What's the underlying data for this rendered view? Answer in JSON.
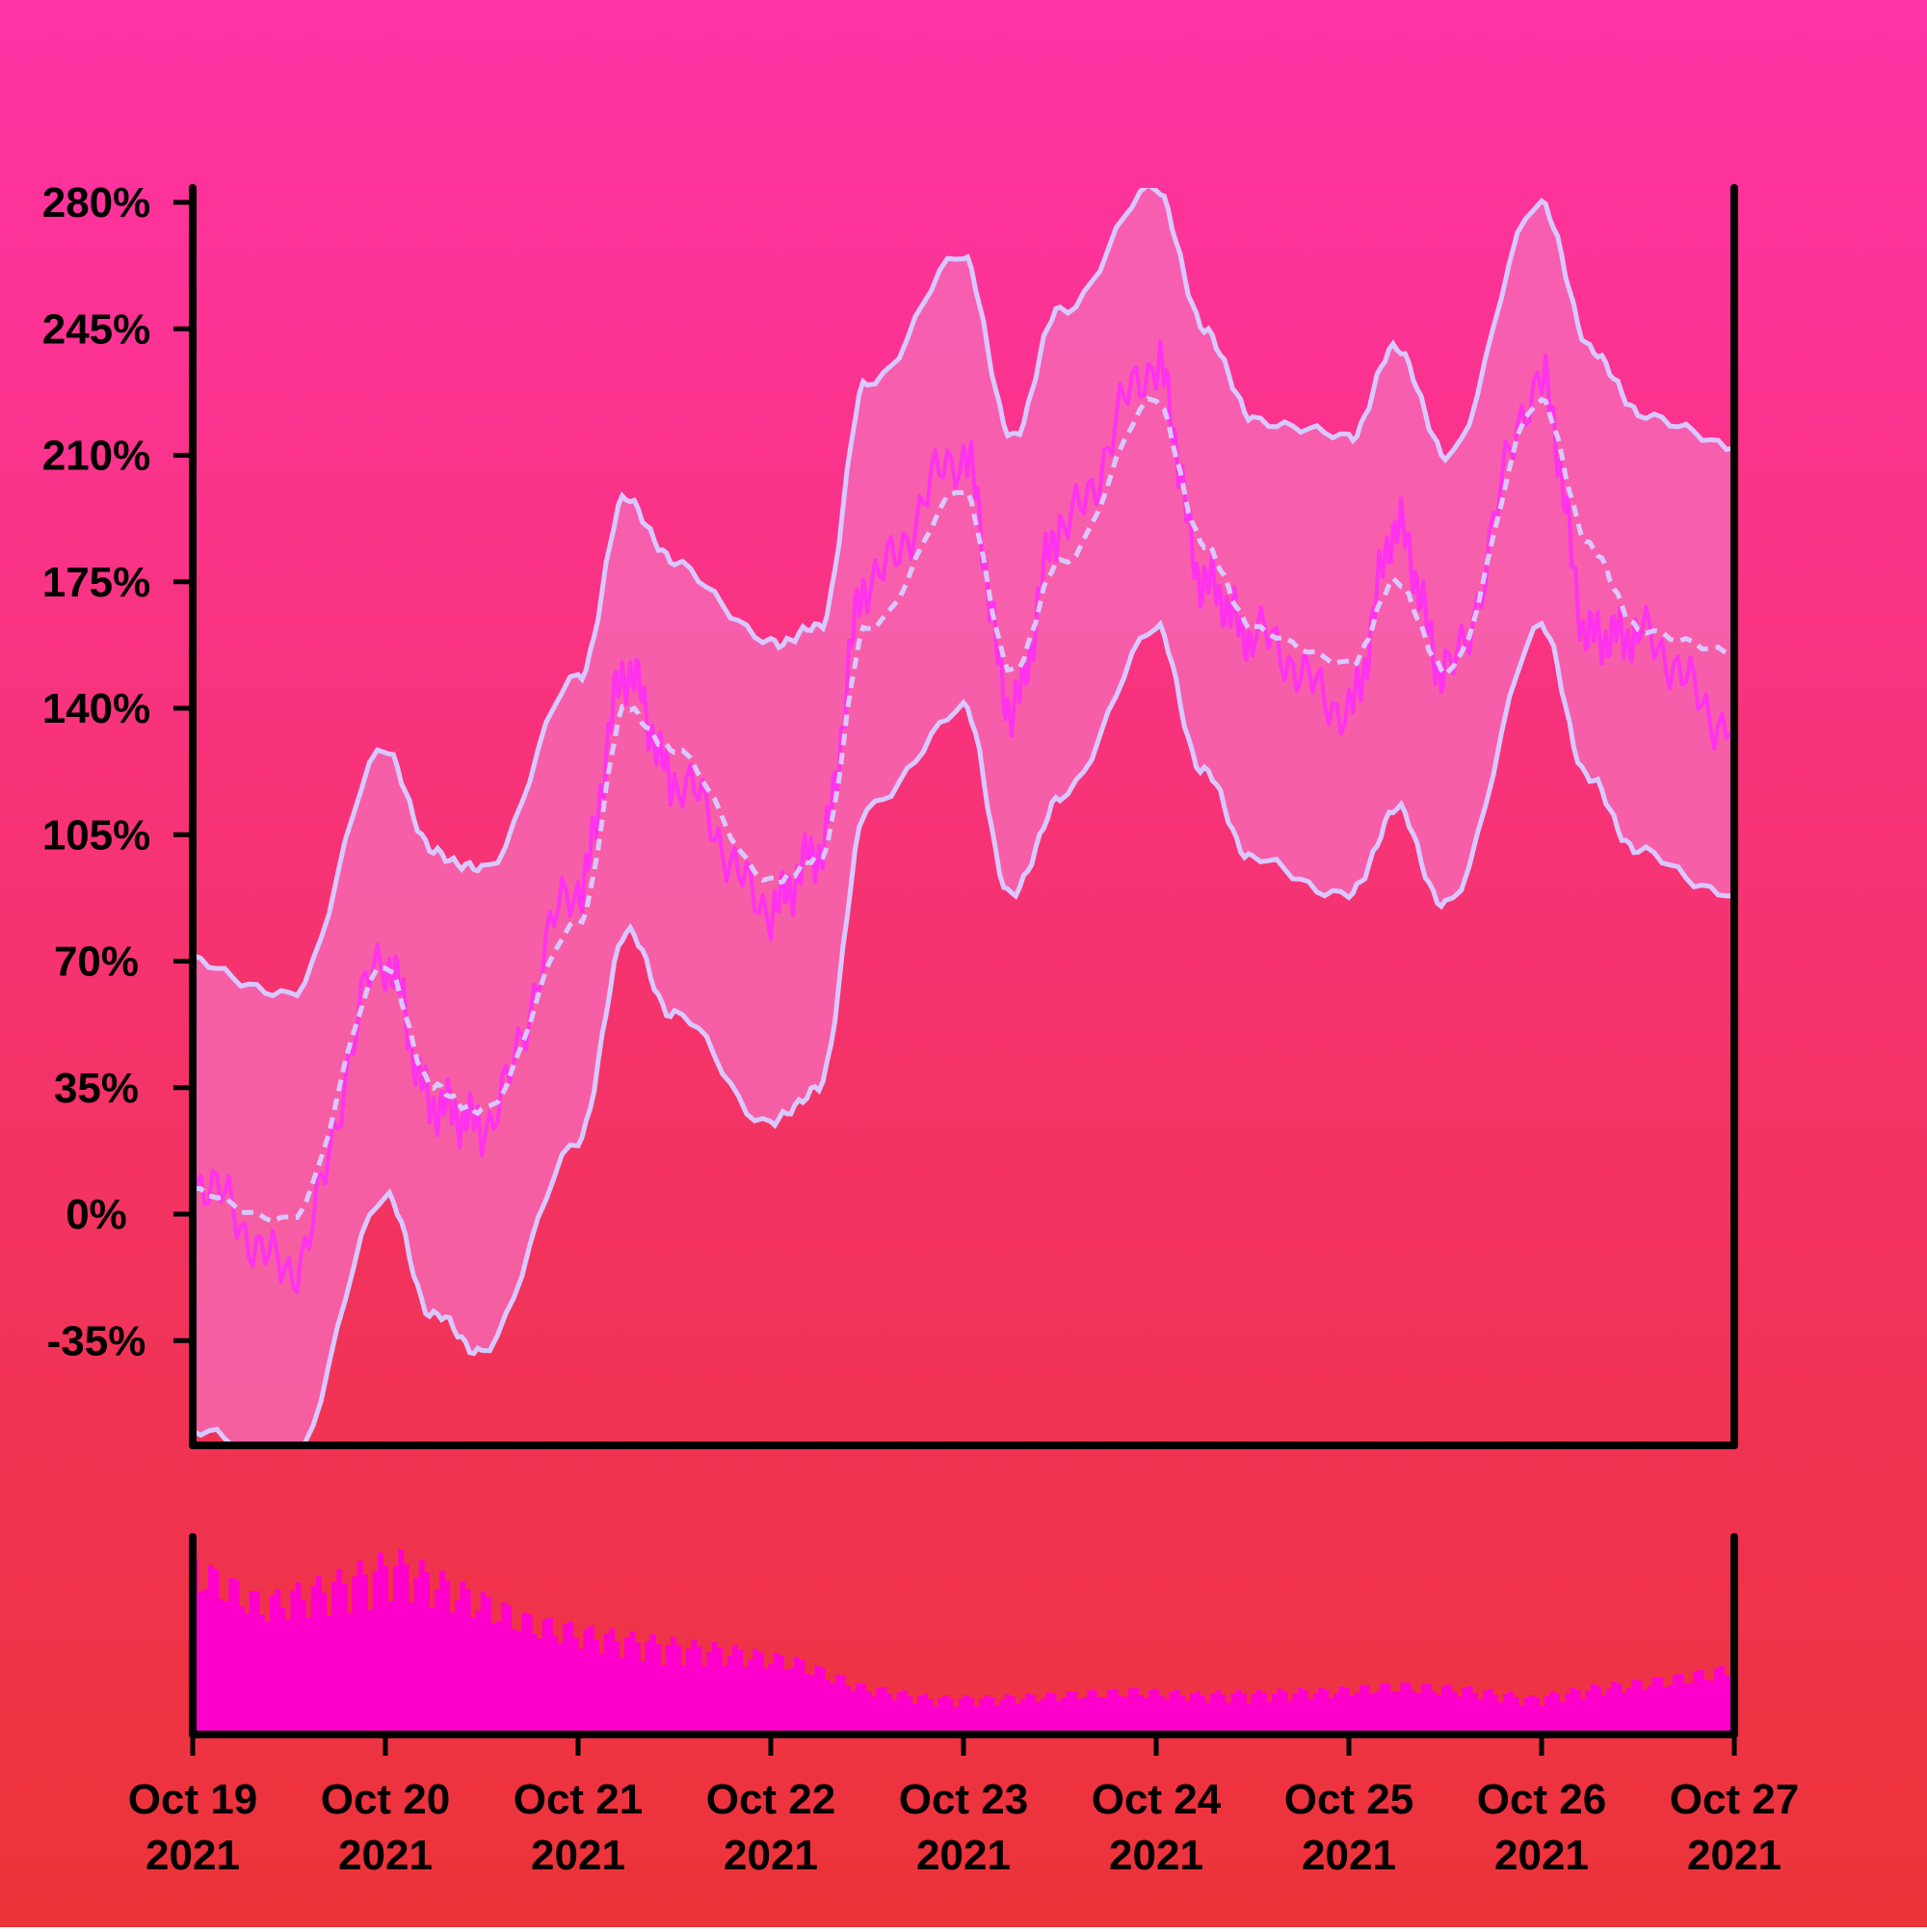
{
  "colors": {
    "background_top": "#ff33a6",
    "background_bottom": "#ec3337",
    "price_line": "#ff33ee",
    "band_line": "#d9c8ff",
    "band_fill": "#f66eb8",
    "volume_bar": "#ff00cc",
    "axis": "#000000"
  },
  "chart_data": [
    {
      "type": "line",
      "title": "",
      "xlabel": "",
      "ylabel": "",
      "y_unit": "%",
      "xlim": [
        "2021-10-19",
        "2021-10-27"
      ],
      "ylim": [
        -64,
        284
      ],
      "y_ticks": [
        -35,
        0,
        35,
        70,
        105,
        140,
        175,
        210,
        245,
        280
      ],
      "y_tick_labels": [
        "-35%",
        "0%",
        "35%",
        "70%",
        "105%",
        "140%",
        "175%",
        "210%",
        "245%",
        "280%"
      ],
      "grid": false,
      "legend": "none",
      "x": [
        "2021-10-19",
        "2021-10-19T12:00",
        "2021-10-20",
        "2021-10-20T06:00",
        "2021-10-20T12:00",
        "2021-10-21",
        "2021-10-21T06:00",
        "2021-10-21T12:00",
        "2021-10-22",
        "2021-10-22T06:00",
        "2021-10-22T12:00",
        "2021-10-23",
        "2021-10-23T06:00",
        "2021-10-23T12:00",
        "2021-10-24",
        "2021-10-24T06:00",
        "2021-10-24T12:00",
        "2021-10-25",
        "2021-10-25T06:00",
        "2021-10-25T12:00",
        "2021-10-26",
        "2021-10-26T06:00",
        "2021-10-26T12:00",
        "2021-10-27"
      ],
      "series": [
        {
          "role": "bollinger-upper",
          "values": [
            70,
            60,
            128,
            100,
            95,
            148,
            198,
            180,
            158,
            162,
            230,
            265,
            215,
            250,
            284,
            245,
            220,
            215,
            240,
            210,
            280,
            240,
            222,
            212
          ]
        },
        {
          "role": "moving-average",
          "values": [
            6,
            -2,
            68,
            35,
            28,
            80,
            140,
            128,
            92,
            98,
            162,
            200,
            150,
            180,
            225,
            185,
            162,
            152,
            175,
            150,
            225,
            185,
            162,
            155
          ]
        },
        {
          "role": "bollinger-lower",
          "values": [
            -60,
            -70,
            5,
            -28,
            -38,
            20,
            78,
            55,
            25,
            35,
            112,
            140,
            88,
            115,
            162,
            122,
            98,
            88,
            112,
            85,
            162,
            120,
            100,
            88
          ]
        },
        {
          "role": "price",
          "values": [
            10,
            -15,
            70,
            30,
            25,
            90,
            150,
            120,
            85,
            100,
            175,
            210,
            140,
            190,
            235,
            175,
            160,
            140,
            190,
            150,
            230,
            160,
            160,
            135
          ]
        }
      ]
    },
    {
      "type": "bar",
      "role": "volume",
      "title": "",
      "x_tick_labels": [
        {
          "month_day": "Oct 19",
          "year": "2021"
        },
        {
          "month_day": "Oct 20",
          "year": "2021"
        },
        {
          "month_day": "Oct 21",
          "year": "2021"
        },
        {
          "month_day": "Oct 22",
          "year": "2021"
        },
        {
          "month_day": "Oct 23",
          "year": "2021"
        },
        {
          "month_day": "Oct 24",
          "year": "2021"
        },
        {
          "month_day": "Oct 25",
          "year": "2021"
        },
        {
          "month_day": "Oct 26",
          "year": "2021"
        },
        {
          "month_day": "Oct 27",
          "year": "2021"
        }
      ],
      "level_scale": "fraction of panel height",
      "levels": [
        0.92,
        0.72,
        0.82,
        0.95,
        0.78,
        0.62,
        0.55,
        0.5,
        0.46,
        0.4,
        0.26,
        0.2,
        0.2,
        0.22,
        0.24,
        0.22,
        0.23,
        0.24,
        0.27,
        0.25,
        0.2,
        0.26,
        0.3,
        0.36
      ]
    }
  ]
}
